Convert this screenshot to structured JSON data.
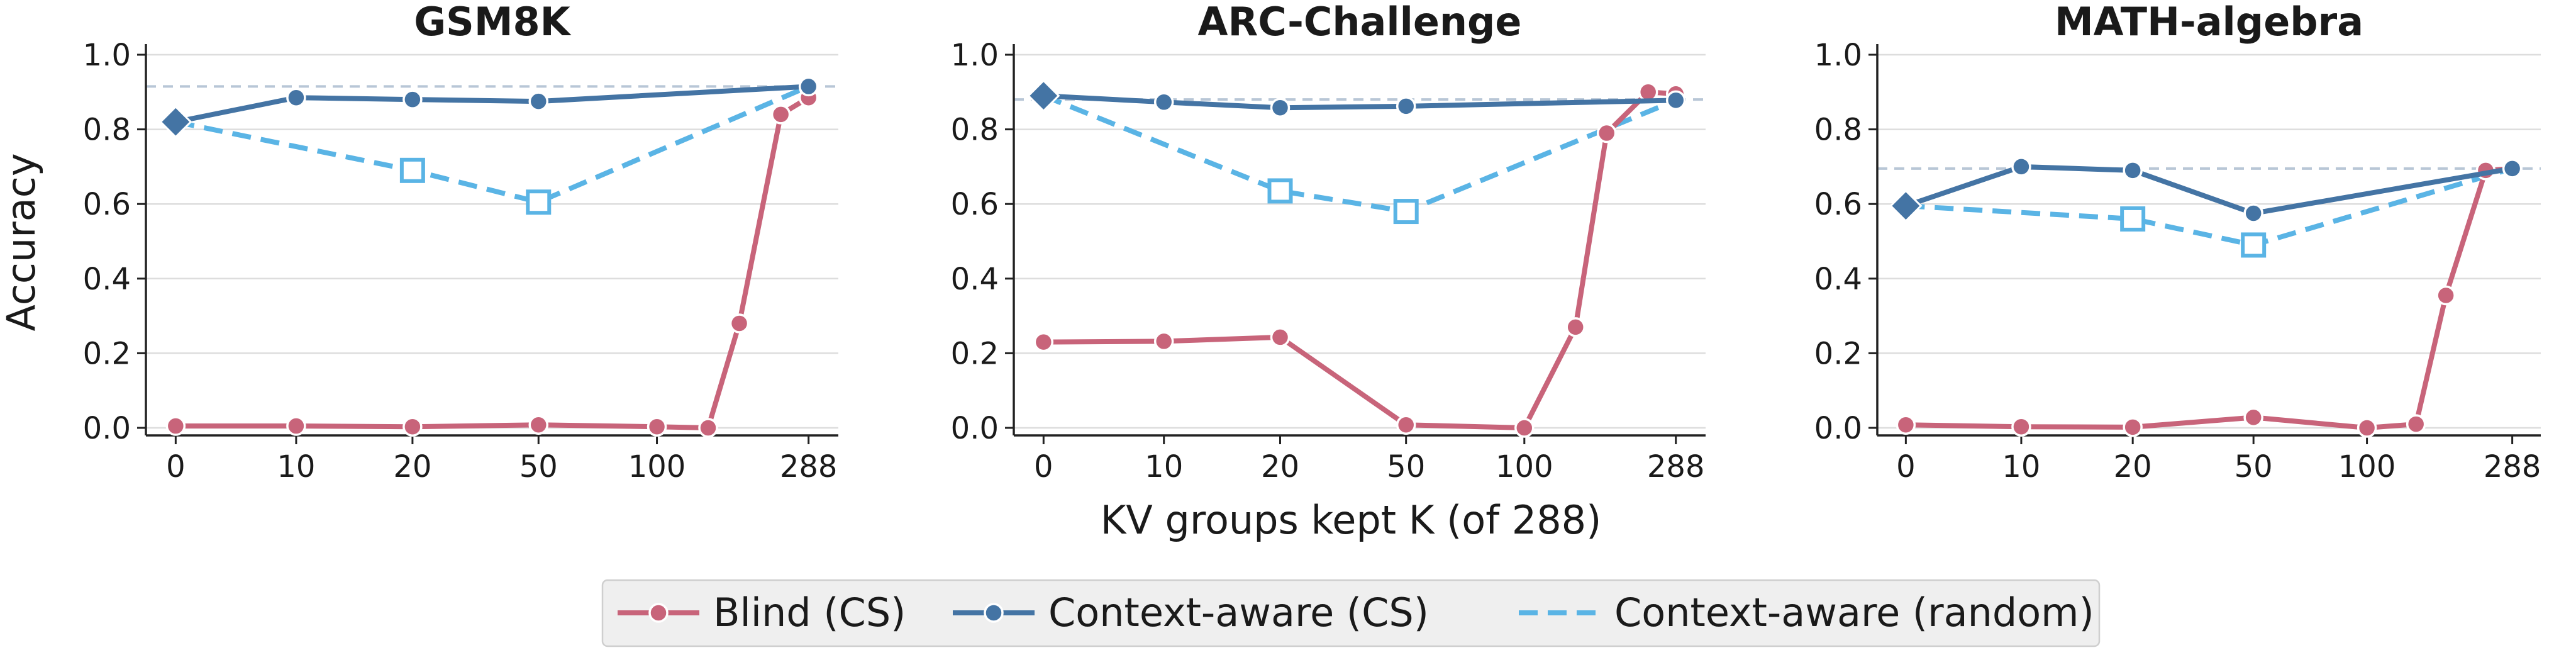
{
  "colors": {
    "blind": "#c8647a",
    "context_aware": "#4474a4",
    "random": "#5ab4e5",
    "reference_line": "#b8c6d6",
    "grid": "#dddddd",
    "legend_bg": "#efefef"
  },
  "figure": {
    "xlabel": "KV groups kept K (of 288)",
    "ylabel": "Accuracy",
    "xtick_labels": [
      "0",
      "10",
      "20",
      "50",
      "100",
      "288"
    ],
    "ytick_labels": [
      "0.0",
      "0.2",
      "0.4",
      "0.6",
      "0.8",
      "1.0"
    ]
  },
  "legend": {
    "blind": "Blind (CS)",
    "context_aware": "Context-aware (CS)",
    "random": "Context-aware (random)"
  },
  "chart_data": [
    {
      "type": "line",
      "title": "GSM8K",
      "xlabel": "",
      "ylabel": "Accuracy",
      "ylim": [
        0,
        1.0
      ],
      "x_categories": [
        "0",
        "10",
        "20",
        "50",
        "100",
        "288"
      ],
      "reference_line": 0.915,
      "series": [
        {
          "name": "Blind (CS)",
          "x": [
            0,
            10,
            20,
            50,
            100,
            150,
            200,
            260,
            288
          ],
          "y": [
            0.005,
            0.005,
            0.003,
            0.008,
            0.003,
            0.0,
            0.28,
            0.84,
            0.885
          ]
        },
        {
          "name": "Context-aware (CS)",
          "x": [
            0,
            10,
            20,
            50,
            288
          ],
          "y": [
            0.82,
            0.885,
            0.88,
            0.875,
            0.915
          ]
        },
        {
          "name": "Context-aware (random)",
          "x": [
            0,
            20,
            50,
            288
          ],
          "y": [
            0.82,
            0.69,
            0.605,
            0.915
          ]
        }
      ]
    },
    {
      "type": "line",
      "title": "ARC-Challenge",
      "xlabel": "KV groups kept K (of 288)",
      "ylabel": "",
      "ylim": [
        0,
        1.0
      ],
      "x_categories": [
        "0",
        "10",
        "20",
        "50",
        "100",
        "288"
      ],
      "reference_line": 0.88,
      "series": [
        {
          "name": "Blind (CS)",
          "x": [
            0,
            10,
            20,
            50,
            100,
            150,
            200,
            260,
            288
          ],
          "y": [
            0.23,
            0.232,
            0.243,
            0.008,
            0.0,
            0.27,
            0.79,
            0.9,
            0.895
          ]
        },
        {
          "name": "Context-aware (CS)",
          "x": [
            0,
            10,
            20,
            50,
            288
          ],
          "y": [
            0.89,
            0.873,
            0.858,
            0.862,
            0.878
          ]
        },
        {
          "name": "Context-aware (random)",
          "x": [
            0,
            20,
            50,
            288
          ],
          "y": [
            0.89,
            0.635,
            0.58,
            0.878
          ]
        }
      ]
    },
    {
      "type": "line",
      "title": "MATH-algebra",
      "xlabel": "",
      "ylabel": "",
      "ylim": [
        0,
        1.0
      ],
      "x_categories": [
        "0",
        "10",
        "20",
        "50",
        "100",
        "288"
      ],
      "reference_line": 0.695,
      "series": [
        {
          "name": "Blind (CS)",
          "x": [
            0,
            10,
            20,
            50,
            100,
            150,
            200,
            260,
            288
          ],
          "y": [
            0.008,
            0.003,
            0.002,
            0.028,
            0.0,
            0.01,
            0.355,
            0.69,
            0.695
          ]
        },
        {
          "name": "Context-aware (CS)",
          "x": [
            0,
            10,
            20,
            50,
            288
          ],
          "y": [
            0.595,
            0.7,
            0.69,
            0.575,
            0.695
          ]
        },
        {
          "name": "Context-aware (random)",
          "x": [
            0,
            20,
            50,
            288
          ],
          "y": [
            0.595,
            0.56,
            0.49,
            0.695
          ]
        }
      ]
    }
  ]
}
